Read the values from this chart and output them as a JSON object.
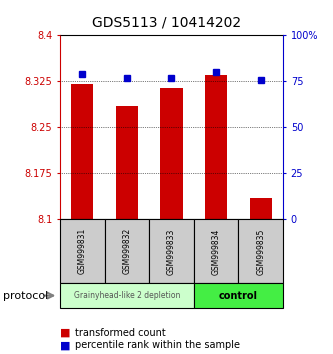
{
  "title": "GDS5113 / 10414202",
  "samples": [
    "GSM999831",
    "GSM999832",
    "GSM999833",
    "GSM999834",
    "GSM999835"
  ],
  "red_values": [
    8.32,
    8.285,
    8.315,
    8.335,
    8.135
  ],
  "blue_values": [
    79,
    77,
    77,
    80,
    76
  ],
  "ymin": 8.1,
  "ymax": 8.4,
  "y2min": 0,
  "y2max": 100,
  "yticks": [
    8.1,
    8.175,
    8.25,
    8.325,
    8.4
  ],
  "ytick_labels": [
    "8.1",
    "8.175",
    "8.25",
    "8.325",
    "8.4"
  ],
  "y2ticks": [
    0,
    25,
    50,
    75,
    100
  ],
  "y2tick_labels": [
    "0",
    "25",
    "50",
    "75",
    "100%"
  ],
  "bar_color": "#cc0000",
  "dot_color": "#0000cc",
  "group1_label": "Grainyhead-like 2 depletion",
  "group2_label": "control",
  "group1_color": "#ccffcc",
  "group2_color": "#44ee44",
  "group1_samples": [
    0,
    1,
    2
  ],
  "group2_samples": [
    3,
    4
  ],
  "protocol_label": "protocol",
  "legend_red": "transformed count",
  "legend_blue": "percentile rank within the sample",
  "bar_bottom": 8.1,
  "bar_width": 0.5
}
